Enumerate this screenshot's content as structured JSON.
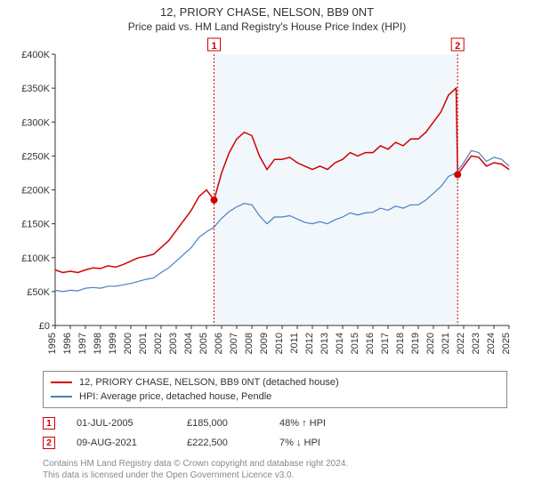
{
  "title_line1": "12, PRIORY CHASE, NELSON, BB9 0NT",
  "title_line2": "Price paid vs. HM Land Registry's House Price Index (HPI)",
  "chart": {
    "type": "line",
    "background_color": "#ffffff",
    "shade_color": "#f2f7fc",
    "axis_color": "#333333",
    "yaxis": {
      "min": 0,
      "max": 400000,
      "step": 50000,
      "ticks": [
        0,
        50000,
        100000,
        150000,
        200000,
        250000,
        300000,
        350000,
        400000
      ],
      "tick_labels": [
        "£0",
        "£50K",
        "£100K",
        "£150K",
        "£200K",
        "£250K",
        "£300K",
        "£350K",
        "£400K"
      ]
    },
    "xaxis": {
      "min": 1995,
      "max": 2025,
      "ticks": [
        1995,
        1996,
        1997,
        1998,
        1999,
        2000,
        2001,
        2002,
        2003,
        2004,
        2005,
        2006,
        2007,
        2008,
        2009,
        2010,
        2011,
        2012,
        2013,
        2014,
        2015,
        2016,
        2017,
        2018,
        2019,
        2020,
        2021,
        2022,
        2023,
        2024,
        2025
      ],
      "tick_labels": [
        "1995",
        "1996",
        "1997",
        "1998",
        "1999",
        "2000",
        "2001",
        "2002",
        "2003",
        "2004",
        "2005",
        "2006",
        "2007",
        "2008",
        "2009",
        "2010",
        "2011",
        "2012",
        "2013",
        "2014",
        "2015",
        "2016",
        "2017",
        "2018",
        "2019",
        "2020",
        "2021",
        "2022",
        "2023",
        "2024",
        "2025"
      ]
    },
    "shade_start_year": 2005.5,
    "shade_end_year": 2021.6,
    "vlines": [
      2005.5,
      2021.6
    ],
    "series": [
      {
        "name": "12, PRIORY CHASE, NELSON, BB9 0NT (detached house)",
        "color": "#d00000",
        "width": 1.5,
        "points": [
          [
            1995,
            82000
          ],
          [
            1995.5,
            78000
          ],
          [
            1996,
            80000
          ],
          [
            1996.5,
            78000
          ],
          [
            1997,
            82000
          ],
          [
            1997.5,
            85000
          ],
          [
            1998,
            84000
          ],
          [
            1998.5,
            88000
          ],
          [
            1999,
            86000
          ],
          [
            1999.5,
            90000
          ],
          [
            2000,
            95000
          ],
          [
            2000.5,
            100000
          ],
          [
            2001,
            102000
          ],
          [
            2001.5,
            105000
          ],
          [
            2002,
            115000
          ],
          [
            2002.5,
            125000
          ],
          [
            2003,
            140000
          ],
          [
            2003.5,
            155000
          ],
          [
            2004,
            170000
          ],
          [
            2004.5,
            190000
          ],
          [
            2005,
            200000
          ],
          [
            2005.5,
            185000
          ],
          [
            2006,
            225000
          ],
          [
            2006.5,
            255000
          ],
          [
            2007,
            275000
          ],
          [
            2007.5,
            285000
          ],
          [
            2008,
            280000
          ],
          [
            2008.5,
            250000
          ],
          [
            2009,
            230000
          ],
          [
            2009.5,
            245000
          ],
          [
            2010,
            245000
          ],
          [
            2010.5,
            248000
          ],
          [
            2011,
            240000
          ],
          [
            2011.5,
            235000
          ],
          [
            2012,
            230000
          ],
          [
            2012.5,
            235000
          ],
          [
            2013,
            230000
          ],
          [
            2013.5,
            240000
          ],
          [
            2014,
            245000
          ],
          [
            2014.5,
            255000
          ],
          [
            2015,
            250000
          ],
          [
            2015.5,
            255000
          ],
          [
            2016,
            255000
          ],
          [
            2016.5,
            265000
          ],
          [
            2017,
            260000
          ],
          [
            2017.5,
            270000
          ],
          [
            2018,
            265000
          ],
          [
            2018.5,
            275000
          ],
          [
            2019,
            275000
          ],
          [
            2019.5,
            285000
          ],
          [
            2020,
            300000
          ],
          [
            2020.5,
            315000
          ],
          [
            2021,
            340000
          ],
          [
            2021.5,
            350000
          ],
          [
            2021.6,
            222500
          ],
          [
            2022,
            235000
          ],
          [
            2022.5,
            250000
          ],
          [
            2023,
            248000
          ],
          [
            2023.5,
            235000
          ],
          [
            2024,
            240000
          ],
          [
            2024.5,
            238000
          ],
          [
            2025,
            230000
          ]
        ]
      },
      {
        "name": "HPI: Average price, detached house, Pendle",
        "color": "#4a7fbf",
        "width": 1.2,
        "points": [
          [
            1995,
            52000
          ],
          [
            1995.5,
            50000
          ],
          [
            1996,
            52000
          ],
          [
            1996.5,
            51000
          ],
          [
            1997,
            55000
          ],
          [
            1997.5,
            56000
          ],
          [
            1998,
            55000
          ],
          [
            1998.5,
            58000
          ],
          [
            1999,
            58000
          ],
          [
            1999.5,
            60000
          ],
          [
            2000,
            62000
          ],
          [
            2000.5,
            65000
          ],
          [
            2001,
            68000
          ],
          [
            2001.5,
            70000
          ],
          [
            2002,
            78000
          ],
          [
            2002.5,
            85000
          ],
          [
            2003,
            95000
          ],
          [
            2003.5,
            105000
          ],
          [
            2004,
            115000
          ],
          [
            2004.5,
            130000
          ],
          [
            2005,
            138000
          ],
          [
            2005.5,
            145000
          ],
          [
            2006,
            158000
          ],
          [
            2006.5,
            168000
          ],
          [
            2007,
            175000
          ],
          [
            2007.5,
            180000
          ],
          [
            2008,
            178000
          ],
          [
            2008.5,
            162000
          ],
          [
            2009,
            150000
          ],
          [
            2009.5,
            160000
          ],
          [
            2010,
            160000
          ],
          [
            2010.5,
            162000
          ],
          [
            2011,
            157000
          ],
          [
            2011.5,
            152000
          ],
          [
            2012,
            150000
          ],
          [
            2012.5,
            153000
          ],
          [
            2013,
            150000
          ],
          [
            2013.5,
            156000
          ],
          [
            2014,
            160000
          ],
          [
            2014.5,
            166000
          ],
          [
            2015,
            163000
          ],
          [
            2015.5,
            166000
          ],
          [
            2016,
            167000
          ],
          [
            2016.5,
            173000
          ],
          [
            2017,
            170000
          ],
          [
            2017.5,
            176000
          ],
          [
            2018,
            173000
          ],
          [
            2018.5,
            178000
          ],
          [
            2019,
            178000
          ],
          [
            2019.5,
            185000
          ],
          [
            2020,
            195000
          ],
          [
            2020.5,
            205000
          ],
          [
            2021,
            220000
          ],
          [
            2021.5,
            225000
          ],
          [
            2022,
            240000
          ],
          [
            2022.5,
            258000
          ],
          [
            2023,
            255000
          ],
          [
            2023.5,
            242000
          ],
          [
            2024,
            248000
          ],
          [
            2024.5,
            245000
          ],
          [
            2025,
            235000
          ]
        ]
      }
    ],
    "sale_markers": [
      {
        "num": "1",
        "year": 2005.5,
        "price": 185000
      },
      {
        "num": "2",
        "year": 2021.6,
        "price": 222500
      }
    ],
    "marker_box_size": 14,
    "sale_dot_color": "#d00000",
    "sale_dot_radius": 4
  },
  "legend": {
    "series1_label": "12, PRIORY CHASE, NELSON, BB9 0NT (detached house)",
    "series1_color": "#d00000",
    "series2_label": "HPI: Average price, detached house, Pendle",
    "series2_color": "#4a7fbf"
  },
  "sales_table": [
    {
      "num": "1",
      "date": "01-JUL-2005",
      "price": "£185,000",
      "pct": "48% ↑ HPI"
    },
    {
      "num": "2",
      "date": "09-AUG-2021",
      "price": "£222,500",
      "pct": "7% ↓ HPI"
    }
  ],
  "attribution": {
    "line1": "Contains HM Land Registry data © Crown copyright and database right 2024.",
    "line2": "This data is licensed under the Open Government Licence v3.0."
  }
}
